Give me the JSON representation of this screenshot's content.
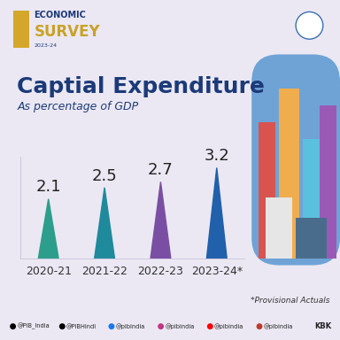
{
  "header": {
    "lines": [
      "ECONOMIC",
      "SURVEY",
      "2023-24"
    ]
  },
  "chart_data": {
    "type": "bar",
    "title": "Captial Expenditure",
    "subtitle": "As percentage of GDP",
    "categories": [
      "2020-21",
      "2021-22",
      "2022-23",
      "2023-24*"
    ],
    "values": [
      2.1,
      2.5,
      2.7,
      3.2
    ],
    "colors": [
      "#2e9e8c",
      "#1f8a9c",
      "#7a4fa3",
      "#2160ab"
    ],
    "ylim": [
      0,
      3.6
    ],
    "data_labels": true,
    "tick_labels": "x",
    "annotations": [
      "*Provisional Actuals"
    ]
  },
  "footer": {
    "handles": [
      "@PIB_India",
      "@PIBHindi",
      "@pibindia",
      "@pibindia",
      "@pibindia",
      "@pibindia"
    ],
    "credit": "KBK"
  }
}
